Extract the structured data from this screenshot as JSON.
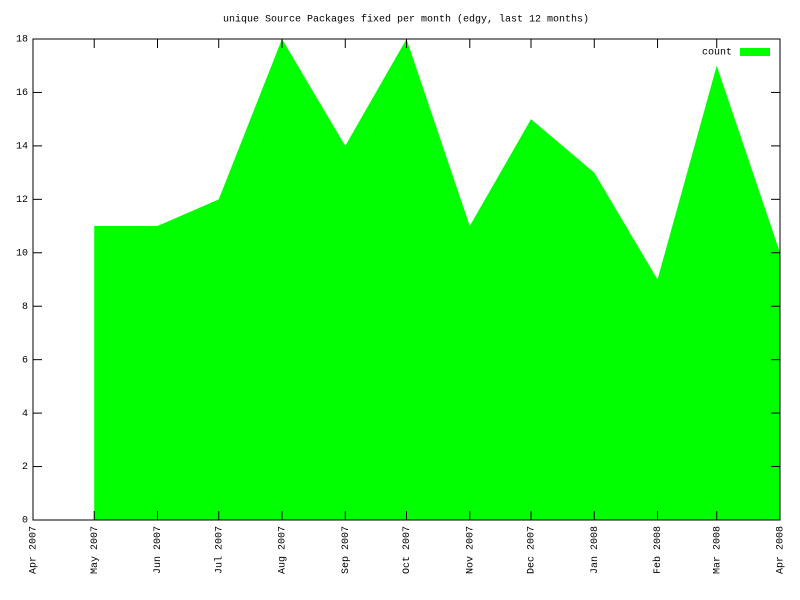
{
  "chart_data": {
    "type": "area",
    "title": "unique Source Packages fixed per month (edgy, last 12 months)",
    "x": [
      "2007-05",
      "2007-06",
      "2007-07",
      "2007-08",
      "2007-09",
      "2007-10",
      "2007-11",
      "2007-12",
      "2008-01",
      "2008-02",
      "2008-03",
      "2008-04"
    ],
    "series": [
      {
        "name": "count",
        "color": "#00ff00",
        "values": [
          11,
          11,
          12,
          18,
          14,
          18,
          11,
          15,
          13,
          9,
          17,
          10
        ]
      }
    ],
    "xlim": [
      "2007-04",
      "2008-04"
    ],
    "xticks": [
      {
        "value": "2007-04",
        "label": "Apr 2007"
      },
      {
        "value": "2007-05",
        "label": "May 2007"
      },
      {
        "value": "2007-06",
        "label": "Jun 2007"
      },
      {
        "value": "2007-07",
        "label": "Jul 2007"
      },
      {
        "value": "2007-08",
        "label": "Aug 2007"
      },
      {
        "value": "2007-09",
        "label": "Sep 2007"
      },
      {
        "value": "2007-10",
        "label": "Oct 2007"
      },
      {
        "value": "2007-11",
        "label": "Nov 2007"
      },
      {
        "value": "2007-12",
        "label": "Dec 2007"
      },
      {
        "value": "2008-01",
        "label": "Jan 2008"
      },
      {
        "value": "2008-02",
        "label": "Feb 2008"
      },
      {
        "value": "2008-03",
        "label": "Mar 2008"
      },
      {
        "value": "2008-04",
        "label": "Apr 2008"
      }
    ],
    "ylim": [
      0,
      18
    ],
    "yticks": [
      0,
      2,
      4,
      6,
      8,
      10,
      12,
      14,
      16,
      18
    ],
    "legend": "top-right"
  }
}
